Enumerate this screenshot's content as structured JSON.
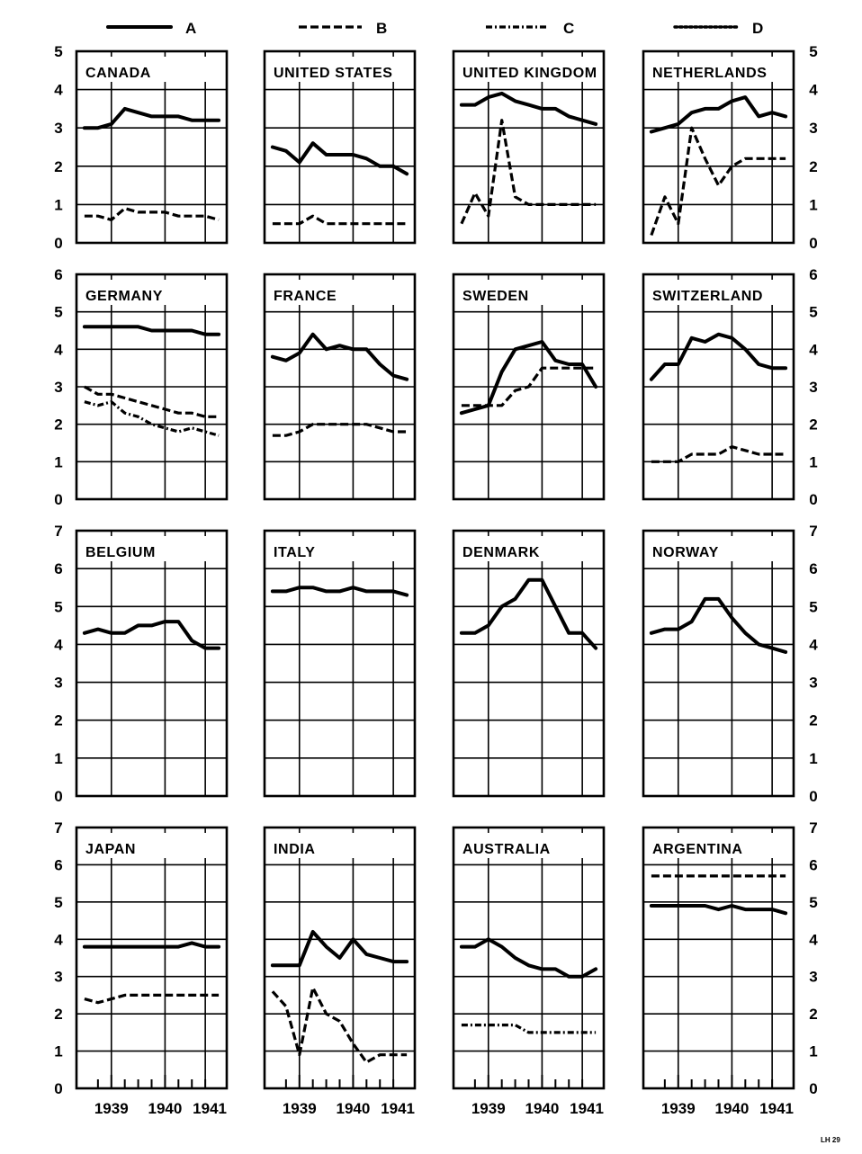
{
  "legend": [
    {
      "label": "A",
      "style": "solid"
    },
    {
      "label": "B",
      "style": "dashed"
    },
    {
      "label": "C",
      "style": "dash-dot"
    },
    {
      "label": "D",
      "style": "dotted"
    }
  ],
  "corner_code": "LH 29",
  "x_axis_ticks": [
    "1939",
    "1940",
    "1941"
  ],
  "chart_data": [
    {
      "type": "line",
      "title": "CANADA",
      "x": [
        1938.5,
        1938.75,
        1939,
        1939.25,
        1939.5,
        1939.75,
        1940,
        1940.25,
        1940.5,
        1940.75,
        1941
      ],
      "series": [
        {
          "name": "A",
          "values": [
            3.0,
            3.0,
            3.1,
            3.5,
            3.4,
            3.3,
            3.3,
            3.3,
            3.2,
            3.2,
            3.2
          ]
        },
        {
          "name": "B",
          "values": [
            0.7,
            0.7,
            0.6,
            0.9,
            0.8,
            0.8,
            0.8,
            0.7,
            0.7,
            0.7,
            0.6
          ]
        }
      ],
      "ylim": [
        0,
        5
      ],
      "yticks": [
        0,
        1,
        2,
        3,
        4,
        5
      ],
      "grid": true
    },
    {
      "type": "line",
      "title": "UNITED STATES",
      "x": [
        1938.5,
        1938.75,
        1939,
        1939.25,
        1939.5,
        1939.75,
        1940,
        1940.25,
        1940.5,
        1940.75,
        1941
      ],
      "series": [
        {
          "name": "A",
          "values": [
            2.5,
            2.4,
            2.1,
            2.6,
            2.3,
            2.3,
            2.3,
            2.2,
            2.0,
            2.0,
            1.8
          ]
        },
        {
          "name": "B",
          "values": [
            0.5,
            0.5,
            0.5,
            0.7,
            0.5,
            0.5,
            0.5,
            0.5,
            0.5,
            0.5,
            0.5
          ]
        }
      ],
      "ylim": [
        0,
        5
      ],
      "yticks": [
        0,
        1,
        2,
        3,
        4,
        5
      ],
      "grid": true
    },
    {
      "type": "line",
      "title": "UNITED KINGDOM",
      "x": [
        1938.5,
        1938.75,
        1939,
        1939.25,
        1939.5,
        1939.75,
        1940,
        1940.25,
        1940.5,
        1940.75,
        1941
      ],
      "series": [
        {
          "name": "A",
          "values": [
            3.6,
            3.6,
            3.8,
            3.9,
            3.7,
            3.6,
            3.5,
            3.5,
            3.3,
            3.2,
            3.1
          ]
        },
        {
          "name": "B",
          "values": [
            0.5,
            1.3,
            0.7,
            3.2,
            1.2,
            1.0,
            1.0,
            1.0,
            1.0,
            1.0,
            1.0
          ]
        }
      ],
      "ylim": [
        0,
        5
      ],
      "yticks": [
        0,
        1,
        2,
        3,
        4,
        5
      ],
      "grid": true
    },
    {
      "type": "line",
      "title": "NETHERLANDS",
      "x": [
        1938.5,
        1938.75,
        1939,
        1939.25,
        1939.5,
        1939.75,
        1940,
        1940.25,
        1940.5,
        1940.75,
        1941
      ],
      "series": [
        {
          "name": "A",
          "values": [
            2.9,
            3.0,
            3.1,
            3.4,
            3.5,
            3.5,
            3.7,
            3.8,
            3.3,
            3.4,
            3.3
          ]
        },
        {
          "name": "B",
          "values": [
            0.2,
            1.2,
            0.5,
            3.0,
            2.2,
            1.5,
            2.0,
            2.2,
            2.2,
            2.2,
            2.2
          ]
        }
      ],
      "ylim": [
        0,
        5
      ],
      "yticks": [
        0,
        1,
        2,
        3,
        4,
        5
      ],
      "grid": true
    },
    {
      "type": "line",
      "title": "GERMANY",
      "x": [
        1938.5,
        1938.75,
        1939,
        1939.25,
        1939.5,
        1939.75,
        1940,
        1940.25,
        1940.5,
        1940.75,
        1941
      ],
      "series": [
        {
          "name": "A",
          "values": [
            4.6,
            4.6,
            4.6,
            4.6,
            4.6,
            4.5,
            4.5,
            4.5,
            4.5,
            4.4,
            4.4
          ]
        },
        {
          "name": "B",
          "values": [
            3.0,
            2.8,
            2.8,
            2.7,
            2.6,
            2.5,
            2.4,
            2.3,
            2.3,
            2.2,
            2.2
          ]
        },
        {
          "name": "C",
          "values": [
            2.6,
            2.5,
            2.6,
            2.3,
            2.2,
            2.0,
            1.9,
            1.8,
            1.9,
            1.8,
            1.7
          ]
        }
      ],
      "ylim": [
        0,
        6
      ],
      "yticks": [
        0,
        1,
        2,
        3,
        4,
        5,
        6
      ],
      "grid": true
    },
    {
      "type": "line",
      "title": "FRANCE",
      "x": [
        1938.5,
        1938.75,
        1939,
        1939.25,
        1939.5,
        1939.75,
        1940,
        1940.25,
        1940.5,
        1940.75,
        1941
      ],
      "series": [
        {
          "name": "A",
          "values": [
            3.8,
            3.7,
            3.9,
            4.4,
            4.0,
            4.1,
            4.0,
            4.0,
            3.6,
            3.3,
            3.2
          ]
        },
        {
          "name": "B",
          "values": [
            1.7,
            1.7,
            1.8,
            2.0,
            2.0,
            2.0,
            2.0,
            2.0,
            1.9,
            1.8,
            1.8
          ]
        }
      ],
      "ylim": [
        0,
        6
      ],
      "yticks": [
        0,
        1,
        2,
        3,
        4,
        5,
        6
      ],
      "grid": true
    },
    {
      "type": "line",
      "title": "SWEDEN",
      "x": [
        1938.5,
        1938.75,
        1939,
        1939.25,
        1939.5,
        1939.75,
        1940,
        1940.25,
        1940.5,
        1940.75,
        1941
      ],
      "series": [
        {
          "name": "A",
          "values": [
            2.3,
            2.4,
            2.5,
            3.4,
            4.0,
            4.1,
            4.2,
            3.7,
            3.6,
            3.6,
            3.0
          ]
        },
        {
          "name": "B",
          "values": [
            2.5,
            2.5,
            2.5,
            2.5,
            2.9,
            3.0,
            3.5,
            3.5,
            3.5,
            3.5,
            3.5
          ]
        }
      ],
      "ylim": [
        0,
        6
      ],
      "yticks": [
        0,
        1,
        2,
        3,
        4,
        5,
        6
      ],
      "grid": true
    },
    {
      "type": "line",
      "title": "SWITZERLAND",
      "x": [
        1938.5,
        1938.75,
        1939,
        1939.25,
        1939.5,
        1939.75,
        1940,
        1940.25,
        1940.5,
        1940.75,
        1941
      ],
      "series": [
        {
          "name": "A",
          "values": [
            3.2,
            3.6,
            3.6,
            4.3,
            4.2,
            4.4,
            4.3,
            4.0,
            3.6,
            3.5,
            3.5
          ]
        },
        {
          "name": "B",
          "values": [
            1.0,
            1.0,
            1.0,
            1.2,
            1.2,
            1.2,
            1.4,
            1.3,
            1.2,
            1.2,
            1.2
          ]
        }
      ],
      "ylim": [
        0,
        6
      ],
      "yticks": [
        0,
        1,
        2,
        3,
        4,
        5,
        6
      ],
      "grid": true
    },
    {
      "type": "line",
      "title": "BELGIUM",
      "x": [
        1938.5,
        1938.75,
        1939,
        1939.25,
        1939.5,
        1939.75,
        1940,
        1940.25,
        1940.5,
        1940.75,
        1941
      ],
      "series": [
        {
          "name": "A",
          "values": [
            4.3,
            4.4,
            4.3,
            4.3,
            4.5,
            4.5,
            4.6,
            4.6,
            4.1,
            3.9,
            3.9
          ]
        }
      ],
      "ylim": [
        0,
        7
      ],
      "yticks": [
        0,
        1,
        2,
        3,
        4,
        5,
        6,
        7
      ],
      "grid": true
    },
    {
      "type": "line",
      "title": "ITALY",
      "x": [
        1938.5,
        1938.75,
        1939,
        1939.25,
        1939.5,
        1939.75,
        1940,
        1940.25,
        1940.5,
        1940.75,
        1941
      ],
      "series": [
        {
          "name": "A",
          "values": [
            5.4,
            5.4,
            5.5,
            5.5,
            5.4,
            5.4,
            5.5,
            5.4,
            5.4,
            5.4,
            5.3
          ]
        }
      ],
      "ylim": [
        0,
        7
      ],
      "yticks": [
        0,
        1,
        2,
        3,
        4,
        5,
        6,
        7
      ],
      "grid": true
    },
    {
      "type": "line",
      "title": "DENMARK",
      "x": [
        1938.5,
        1938.75,
        1939,
        1939.25,
        1939.5,
        1939.75,
        1940,
        1940.25,
        1940.5,
        1940.75,
        1941
      ],
      "series": [
        {
          "name": "A",
          "values": [
            4.3,
            4.3,
            4.5,
            5.0,
            5.2,
            5.7,
            5.7,
            5.0,
            4.3,
            4.3,
            3.9
          ]
        }
      ],
      "ylim": [
        0,
        7
      ],
      "yticks": [
        0,
        1,
        2,
        3,
        4,
        5,
        6,
        7
      ],
      "grid": true
    },
    {
      "type": "line",
      "title": "NORWAY",
      "x": [
        1938.5,
        1938.75,
        1939,
        1939.25,
        1939.5,
        1939.75,
        1940,
        1940.25,
        1940.5,
        1940.75,
        1941
      ],
      "series": [
        {
          "name": "A",
          "values": [
            4.3,
            4.4,
            4.4,
            4.6,
            5.2,
            5.2,
            4.7,
            4.3,
            4.0,
            3.9,
            3.8
          ]
        }
      ],
      "ylim": [
        0,
        7
      ],
      "yticks": [
        0,
        1,
        2,
        3,
        4,
        5,
        6,
        7
      ],
      "grid": true
    },
    {
      "type": "line",
      "title": "JAPAN",
      "x": [
        1938.5,
        1938.75,
        1939,
        1939.25,
        1939.5,
        1939.75,
        1940,
        1940.25,
        1940.5,
        1940.75,
        1941
      ],
      "series": [
        {
          "name": "A",
          "values": [
            3.8,
            3.8,
            3.8,
            3.8,
            3.8,
            3.8,
            3.8,
            3.8,
            3.9,
            3.8,
            3.8
          ]
        },
        {
          "name": "B",
          "values": [
            2.4,
            2.3,
            2.4,
            2.5,
            2.5,
            2.5,
            2.5,
            2.5,
            2.5,
            2.5,
            2.5
          ]
        }
      ],
      "ylim": [
        0,
        7
      ],
      "yticks": [
        0,
        1,
        2,
        3,
        4,
        5,
        6,
        7
      ],
      "grid": true
    },
    {
      "type": "line",
      "title": "INDIA",
      "x": [
        1938.5,
        1938.75,
        1939,
        1939.25,
        1939.5,
        1939.75,
        1940,
        1940.25,
        1940.5,
        1940.75,
        1941
      ],
      "series": [
        {
          "name": "A",
          "values": [
            3.3,
            3.3,
            3.3,
            4.2,
            3.8,
            3.5,
            4.0,
            3.6,
            3.5,
            3.4,
            3.4
          ]
        },
        {
          "name": "B",
          "values": [
            2.6,
            2.2,
            0.9,
            2.7,
            2.0,
            1.8,
            1.2,
            0.7,
            0.9,
            0.9,
            0.9
          ]
        }
      ],
      "ylim": [
        0,
        7
      ],
      "yticks": [
        0,
        1,
        2,
        3,
        4,
        5,
        6,
        7
      ],
      "grid": true
    },
    {
      "type": "line",
      "title": "AUSTRALIA",
      "x": [
        1938.5,
        1938.75,
        1939,
        1939.25,
        1939.5,
        1939.75,
        1940,
        1940.25,
        1940.5,
        1940.75,
        1941
      ],
      "series": [
        {
          "name": "A",
          "values": [
            3.8,
            3.8,
            4.0,
            3.8,
            3.5,
            3.3,
            3.2,
            3.2,
            3.0,
            3.0,
            3.2
          ]
        },
        {
          "name": "C",
          "values": [
            1.7,
            1.7,
            1.7,
            1.7,
            1.7,
            1.5,
            1.5,
            1.5,
            1.5,
            1.5,
            1.5
          ]
        }
      ],
      "ylim": [
        0,
        7
      ],
      "yticks": [
        0,
        1,
        2,
        3,
        4,
        5,
        6,
        7
      ],
      "grid": true
    },
    {
      "type": "line",
      "title": "ARGENTINA",
      "x": [
        1938.5,
        1938.75,
        1939,
        1939.25,
        1939.5,
        1939.75,
        1940,
        1940.25,
        1940.5,
        1940.75,
        1941
      ],
      "series": [
        {
          "name": "A",
          "values": [
            4.9,
            4.9,
            4.9,
            4.9,
            4.9,
            4.8,
            4.9,
            4.8,
            4.8,
            4.8,
            4.7
          ]
        },
        {
          "name": "B",
          "values": [
            5.7,
            5.7,
            5.7,
            5.7,
            5.7,
            5.7,
            5.7,
            5.7,
            5.7,
            5.7,
            5.7
          ]
        }
      ],
      "ylim": [
        0,
        7
      ],
      "yticks": [
        0,
        1,
        2,
        3,
        4,
        5,
        6,
        7
      ],
      "grid": true
    }
  ]
}
